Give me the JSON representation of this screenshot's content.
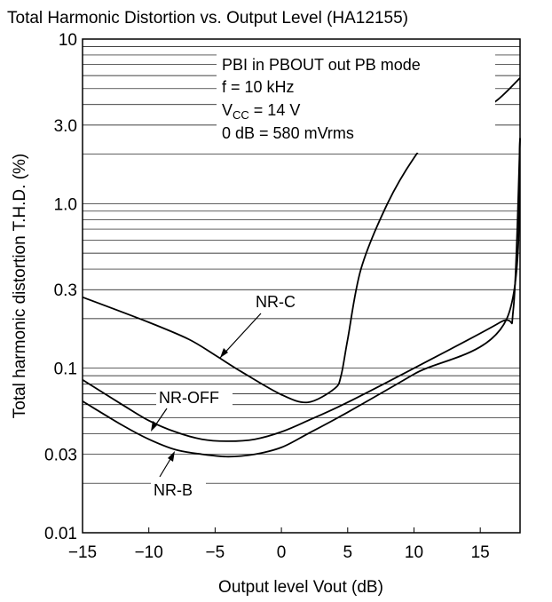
{
  "chart_data": {
    "type": "line",
    "title": "Total Harmonic Distortion vs. Output Level (HA12155)",
    "xlabel": "Output level Vout (dB)",
    "ylabel": "Total harmonic distortion T.H.D. (%)",
    "xlim": [
      -15,
      18
    ],
    "ylim": [
      0.01,
      10
    ],
    "yscale": "log",
    "grid": "horizontal log minor lines",
    "x_ticks": [
      -15,
      -10,
      -5,
      0,
      5,
      10,
      15
    ],
    "x_tick_labels": [
      "−15",
      "−10",
      "−5",
      "0",
      "5",
      "10",
      "15"
    ],
    "y_ticks": [
      0.01,
      0.03,
      0.1,
      0.3,
      1.0,
      3.0,
      10
    ],
    "y_tick_labels": [
      "0.01",
      "0.03",
      "0.1",
      "0.3",
      "1.0",
      "3.0",
      "10"
    ],
    "conditions": {
      "line1": "PBI in PBOUT out PB mode",
      "line2": "f = 10 kHz",
      "line3_pre": "V",
      "line3_sub": "CC",
      "line3_post": " = 14 V",
      "line4": "0 dB = 580 mVrms"
    },
    "series": [
      {
        "name": "NR-C",
        "x": [
          -15,
          -10,
          -7,
          -5,
          -3,
          0,
          2,
          4,
          4.5,
          5,
          6,
          8,
          10,
          12,
          14,
          16,
          18
        ],
        "y": [
          0.27,
          0.19,
          0.15,
          0.12,
          0.095,
          0.069,
          0.062,
          0.075,
          0.09,
          0.15,
          0.4,
          1.0,
          1.9,
          3.0,
          3.7,
          4.1,
          5.8
        ]
      },
      {
        "name": "NR-OFF",
        "x": [
          -15,
          -12,
          -10,
          -8,
          -6,
          -4,
          -2,
          0,
          2,
          5,
          10,
          16.5,
          17.5,
          18
        ],
        "y": [
          0.085,
          0.06,
          0.048,
          0.041,
          0.037,
          0.036,
          0.037,
          0.041,
          0.048,
          0.062,
          0.1,
          0.19,
          0.23,
          2.5
        ]
      },
      {
        "name": "NR-B",
        "x": [
          -15,
          -12,
          -10,
          -8,
          -6,
          -4,
          -2,
          0,
          2,
          5,
          10,
          17,
          18
        ],
        "y": [
          0.063,
          0.045,
          0.037,
          0.032,
          0.03,
          0.029,
          0.03,
          0.033,
          0.04,
          0.054,
          0.092,
          0.2,
          2.5
        ]
      }
    ]
  }
}
